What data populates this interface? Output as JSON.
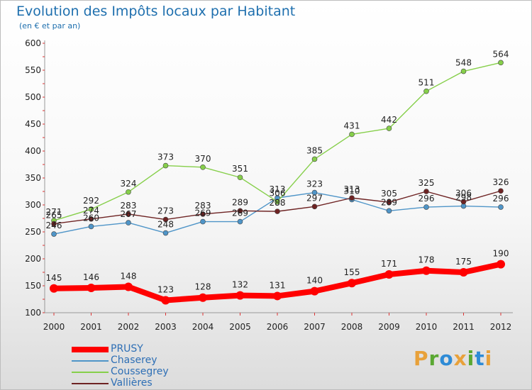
{
  "title": "Evolution des Impôts locaux par Habitant",
  "subtitle": "(en € et par an)",
  "logo": {
    "text": "Proxiti",
    "colors": [
      "#e8a13a",
      "#5aa832",
      "#2e8bd6",
      "#e8a13a",
      "#5aa832",
      "#2e8bd6",
      "#e8a13a"
    ]
  },
  "chart_data": {
    "type": "line",
    "x": [
      "2000",
      "2001",
      "2002",
      "2003",
      "2004",
      "2005",
      "2006",
      "2007",
      "2008",
      "2009",
      "2010",
      "2011",
      "2012"
    ],
    "ylim": [
      100,
      600
    ],
    "yticks": [
      100,
      150,
      200,
      250,
      300,
      350,
      400,
      450,
      500,
      550,
      600
    ],
    "grid": false,
    "legend_position": "bottom-left",
    "series": [
      {
        "name": "PRUSY",
        "color": "#ff0000",
        "values": [
          145,
          146,
          148,
          123,
          128,
          132,
          131,
          140,
          155,
          171,
          178,
          175,
          190
        ]
      },
      {
        "name": "Chaserey",
        "color": "#4f95c8",
        "values": [
          246,
          260,
          267,
          248,
          269,
          269,
          313,
          323,
          310,
          289,
          296,
          298,
          296
        ]
      },
      {
        "name": "Coussegrey",
        "color": "#86cf4a",
        "values": [
          271,
          292,
          324,
          373,
          370,
          351,
          306,
          385,
          431,
          442,
          511,
          548,
          564
        ]
      },
      {
        "name": "Vallières",
        "color": "#6e2323",
        "values": [
          265,
          274,
          283,
          273,
          283,
          289,
          288,
          297,
          313,
          305,
          325,
          306,
          326
        ]
      }
    ]
  }
}
